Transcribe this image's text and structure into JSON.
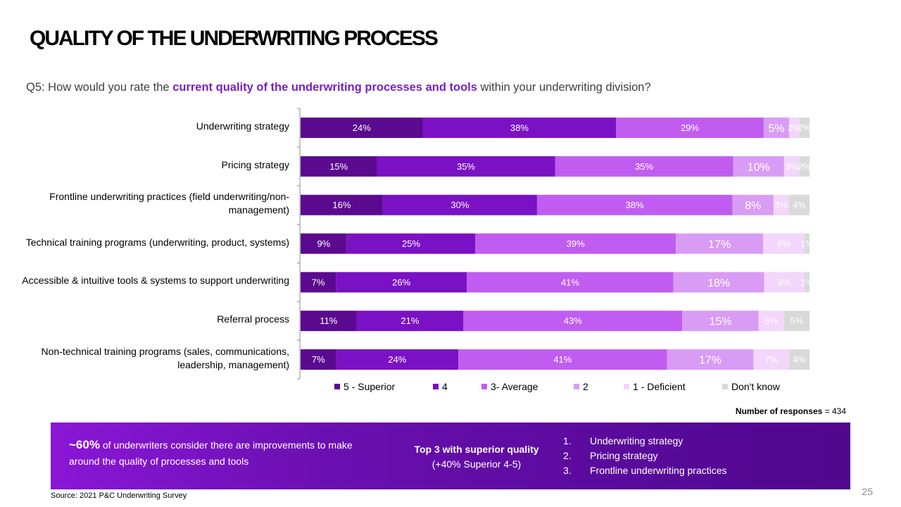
{
  "title": "QUALITY OF THE UNDERWRITING PROCESS",
  "question": {
    "prefix": "Q5: How would you rate the ",
    "highlight": "current quality of the underwriting processes and tools",
    "suffix": " within your underwriting division?"
  },
  "chart_data": {
    "type": "bar",
    "orientation": "horizontal-stacked-100",
    "categories": [
      "Underwriting strategy",
      "Pricing strategy",
      "Frontline underwriting practices (field underwriting/non-management)",
      "Technical training programs (underwriting, product, systems)",
      "Accessible & intuitive tools & systems to support underwriting",
      "Referral process",
      "Non-technical training programs (sales, communications, leadership, management)"
    ],
    "series": [
      {
        "name": "5 - Superior",
        "color": "#5b0a8f",
        "label_color": "#ffffff",
        "values": [
          24,
          15,
          16,
          9,
          7,
          11,
          7
        ]
      },
      {
        "name": "4",
        "color": "#7a11c4",
        "label_color": "#ffffff",
        "values": [
          38,
          35,
          30,
          25,
          26,
          21,
          24
        ]
      },
      {
        "name": "3- Average",
        "color": "#c05df0",
        "label_color": "#ffffff",
        "values": [
          29,
          35,
          38,
          39,
          41,
          43,
          41
        ]
      },
      {
        "name": "2",
        "color": "#d99cf5",
        "label_color": "#ffffff",
        "values": [
          5,
          10,
          8,
          17,
          18,
          15,
          17
        ]
      },
      {
        "name": "1 - Deficient",
        "color": "#f2d6fb",
        "label_color": "#ffffff",
        "values": [
          2,
          3,
          3,
          8,
          8,
          5,
          7
        ]
      },
      {
        "name": "Don't know",
        "color": "#d9d9d9",
        "label_color": "#ffffff",
        "values": [
          2,
          2,
          4,
          1,
          1,
          5,
          4
        ]
      }
    ],
    "data_labels": [
      [
        "24%",
        "38%",
        "29%",
        "5%",
        "2%",
        "2%"
      ],
      [
        "15%",
        "35%",
        "35%",
        "10%",
        "3%",
        "2%"
      ],
      [
        "16%",
        "30%",
        "38%",
        "8%",
        "3%",
        "4%"
      ],
      [
        "9%",
        "25%",
        "39%",
        "17%",
        "8%",
        "1%"
      ],
      [
        "7%",
        "26%",
        "41%",
        "18%",
        "8%",
        "1%"
      ],
      [
        "11%",
        "21%",
        "43%",
        "15%",
        "5%",
        "5%"
      ],
      [
        "7%",
        "24%",
        "41%",
        "17%",
        "7%",
        "4%"
      ]
    ],
    "xlim": [
      0,
      100
    ],
    "legend_position": "bottom"
  },
  "responses": {
    "label": "Number of responses",
    "value": " = 434"
  },
  "banner": {
    "stat_pct": "~60%",
    "stat_text": " of underwriters consider there are improvements to make around the quality of processes and tools",
    "top3_title": "Top 3 with superior quality",
    "top3_sub": "(+40% Superior 4-5)",
    "list": [
      {
        "num": "1.",
        "text": "Underwriting strategy"
      },
      {
        "num": "2.",
        "text": "Pricing strategy"
      },
      {
        "num": "3.",
        "text": "Frontline underwriting practices"
      }
    ]
  },
  "source": "Source: 2021 P&C Underwriting Survey",
  "page_number": "25"
}
